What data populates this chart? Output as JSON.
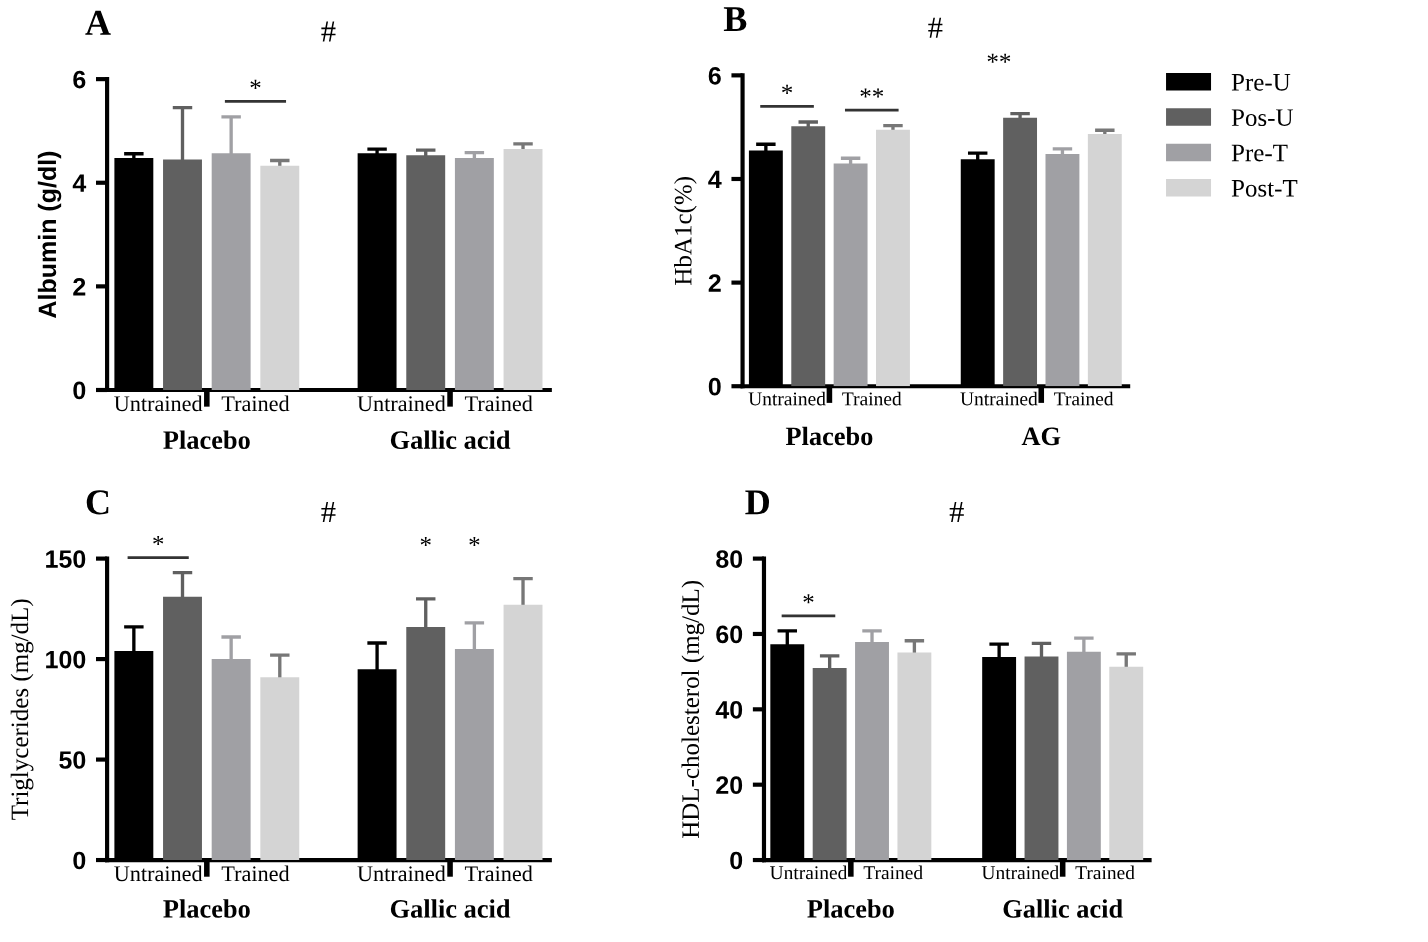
{
  "chart_data": [
    {
      "type": "bar",
      "title": "A",
      "ylabel": "Albumin (g/dl)",
      "ylim": [
        0,
        6
      ],
      "yticks": [
        0,
        2,
        4,
        6
      ],
      "categories": [
        "Untrained",
        "Trained",
        "Untrained",
        "Trained"
      ],
      "series": [
        {
          "color": "#000000",
          "values": [
            4.48,
            null,
            4.57,
            null
          ],
          "errors": [
            0.08,
            null,
            0.08,
            null
          ]
        },
        {
          "color": "#606060",
          "values": [
            4.45,
            null,
            4.53,
            null
          ],
          "errors": [
            1.0,
            null,
            0.1,
            null
          ]
        },
        {
          "color": "#a0a0a4",
          "values": [
            null,
            4.57,
            null,
            4.48
          ],
          "errors": [
            null,
            0.7,
            null,
            0.1
          ]
        },
        {
          "color": "#d4d4d4",
          "values": [
            null,
            4.33,
            null,
            4.65
          ],
          "errors": [
            null,
            0.1,
            null,
            0.1
          ]
        }
      ],
      "annotations": [
        "Placebo",
        "Gallic acid",
        "#",
        {
          "text": "*",
          "x": "Trained",
          "y": 4.57
        }
      ],
      "grid": false,
      "legend": false
    },
    {
      "type": "bar",
      "title": "B",
      "ylabel": "HbA1c(%)",
      "ylim": [
        0,
        6
      ],
      "yticks": [
        0,
        2,
        4,
        6
      ],
      "categories": [
        "Untrained",
        "Trained",
        "Untrained",
        "Trained"
      ],
      "series": [
        {
          "name": "Pre-U",
          "color": "#000000",
          "values": [
            4.55,
            null,
            4.38,
            null
          ],
          "errors": [
            0.12,
            null,
            0.12,
            null
          ]
        },
        {
          "name": "Pos-U",
          "color": "#606060",
          "values": [
            5.02,
            null,
            5.18,
            null
          ],
          "errors": [
            0.08,
            null,
            0.08,
            null
          ]
        },
        {
          "name": "Pre-T",
          "color": "#a0a0a4",
          "values": [
            null,
            4.3,
            null,
            4.48
          ],
          "errors": [
            null,
            0.1,
            null,
            0.1
          ]
        },
        {
          "name": "Post-T",
          "color": "#d4d4d4",
          "values": [
            null,
            4.95,
            null,
            4.87
          ],
          "errors": [
            null,
            0.08,
            null,
            0.07
          ]
        }
      ],
      "annotations": [
        "Placebo",
        "AG",
        "#",
        "**",
        {
          "text": "*",
          "x": "Untrained",
          "y": 5.02
        },
        {
          "text": "**",
          "x": "Trained",
          "y": 4.95
        }
      ],
      "grid": false,
      "legend": "right"
    },
    {
      "type": "bar",
      "title": "C",
      "ylabel": "Triglycerides (mg/dL)",
      "ylim": [
        0,
        150
      ],
      "yticks": [
        0,
        50,
        100,
        150
      ],
      "categories": [
        "Untrained",
        "Trained",
        "Untrained",
        "Trained"
      ],
      "series": [
        {
          "color": "#000000",
          "values": [
            104,
            null,
            95,
            null
          ],
          "errors": [
            12,
            null,
            13,
            null
          ]
        },
        {
          "color": "#606060",
          "values": [
            131,
            null,
            116,
            null
          ],
          "errors": [
            12,
            null,
            14,
            null
          ]
        },
        {
          "color": "#a0a0a4",
          "values": [
            null,
            100,
            null,
            105
          ],
          "errors": [
            null,
            11,
            null,
            13
          ]
        },
        {
          "color": "#d4d4d4",
          "values": [
            null,
            91,
            null,
            127
          ],
          "errors": [
            null,
            11,
            null,
            13
          ]
        }
      ],
      "annotations": [
        "Placebo",
        "Gallic acid",
        "#",
        "*",
        "*",
        {
          "text": "*",
          "x": "Untrained",
          "y": 131
        }
      ],
      "grid": false,
      "legend": false
    },
    {
      "type": "bar",
      "title": "D",
      "ylabel": "HDL-cholesterol (mg/dL)",
      "ylim": [
        0,
        80
      ],
      "yticks": [
        0,
        20,
        40,
        60,
        80
      ],
      "categories": [
        "Untrained",
        "Trained",
        "Untrained",
        "Trained"
      ],
      "series": [
        {
          "color": "#000000",
          "values": [
            57.3,
            null,
            53.9,
            null
          ],
          "errors": [
            3.5,
            null,
            3.4,
            null
          ]
        },
        {
          "color": "#606060",
          "values": [
            51,
            null,
            54,
            null
          ],
          "errors": [
            3.2,
            null,
            3.5,
            null
          ]
        },
        {
          "color": "#a0a0a4",
          "values": [
            null,
            57.9,
            null,
            55.3
          ],
          "errors": [
            null,
            2.9,
            null,
            3.6
          ]
        },
        {
          "color": "#d4d4d4",
          "values": [
            null,
            55.1,
            null,
            51.3
          ],
          "errors": [
            null,
            3.1,
            null,
            3.4
          ]
        }
      ],
      "annotations": [
        "Placebo",
        "Gallic acid",
        "#",
        {
          "text": "*",
          "x": "Untrained",
          "y": 57.3
        }
      ],
      "grid": false,
      "legend": false
    }
  ]
}
